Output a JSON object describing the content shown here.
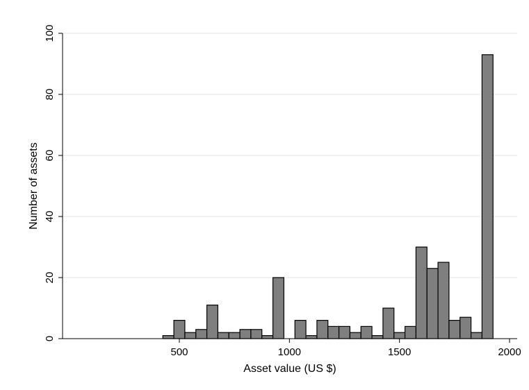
{
  "chart_data": {
    "type": "bar",
    "subtype": "histogram",
    "title": "",
    "xlabel": "Asset value (US $)",
    "ylabel": "Number of assets",
    "xlim": [
      0,
      2000
    ],
    "ylim": [
      0,
      100
    ],
    "xticks": [
      "500",
      "1000",
      "1500",
      "2000"
    ],
    "yticks": [
      "0",
      "20",
      "40",
      "60",
      "80",
      "100"
    ],
    "grid": true,
    "bin_width": 50,
    "bins": [
      {
        "x": 425,
        "value": 1
      },
      {
        "x": 475,
        "value": 6
      },
      {
        "x": 525,
        "value": 2
      },
      {
        "x": 575,
        "value": 3
      },
      {
        "x": 625,
        "value": 11
      },
      {
        "x": 675,
        "value": 2
      },
      {
        "x": 725,
        "value": 2
      },
      {
        "x": 775,
        "value": 3
      },
      {
        "x": 825,
        "value": 3
      },
      {
        "x": 875,
        "value": 1
      },
      {
        "x": 925,
        "value": 20
      },
      {
        "x": 1025,
        "value": 6
      },
      {
        "x": 1075,
        "value": 1
      },
      {
        "x": 1125,
        "value": 6
      },
      {
        "x": 1175,
        "value": 4
      },
      {
        "x": 1225,
        "value": 4
      },
      {
        "x": 1275,
        "value": 2
      },
      {
        "x": 1325,
        "value": 4
      },
      {
        "x": 1375,
        "value": 1
      },
      {
        "x": 1425,
        "value": 10
      },
      {
        "x": 1475,
        "value": 2
      },
      {
        "x": 1525,
        "value": 4
      },
      {
        "x": 1575,
        "value": 30
      },
      {
        "x": 1625,
        "value": 23
      },
      {
        "x": 1675,
        "value": 25
      },
      {
        "x": 1725,
        "value": 6
      },
      {
        "x": 1775,
        "value": 7
      },
      {
        "x": 1825,
        "value": 2
      },
      {
        "x": 1875,
        "value": 93
      }
    ],
    "colors": {
      "bar_fill": "#7f7f7f",
      "bar_stroke": "#000000",
      "grid": "#e4e4e4"
    }
  }
}
